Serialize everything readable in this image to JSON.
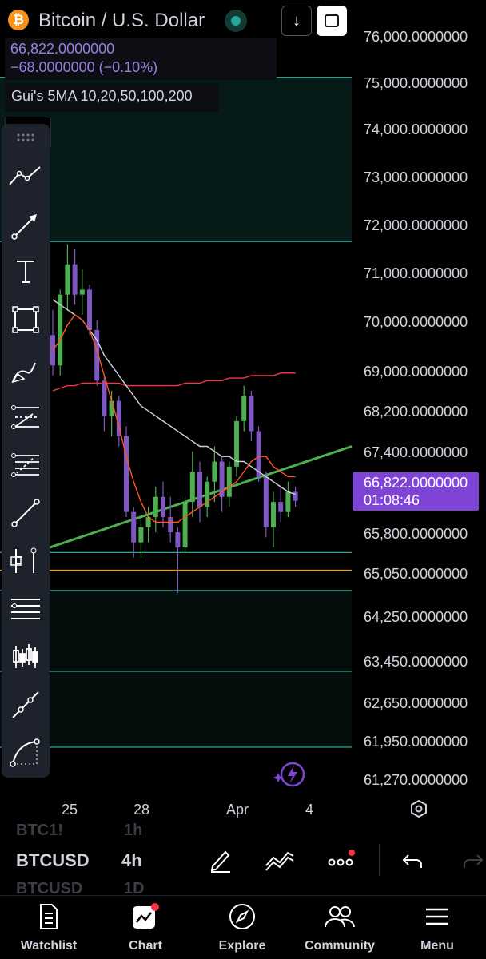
{
  "header": {
    "logo_glyph": "₿",
    "symbol_title": "Bitcoin / U.S. Dollar",
    "price": "66,822.0000000",
    "change": "−68.0000000 (−0.10%)",
    "indicator": "Gui's 5MA 10,20,50,100,200",
    "live_status_color": "#26a69a",
    "down_arrow_glyph": "↓"
  },
  "y_axis": {
    "labels": [
      "76,000.0000000",
      "75,000.0000000",
      "74,000.0000000",
      "73,000.0000000",
      "72,000.0000000",
      "71,000.0000000",
      "70,000.0000000",
      "69,000.0000000",
      "68,200.0000000",
      "67,400.0000000",
      "65,800.0000000",
      "65,050.0000000",
      "64,250.0000000",
      "63,450.0000000",
      "62,650.0000000",
      "61,950.0000000",
      "61,270.0000000"
    ],
    "current_price": "66,822.0000000",
    "countdown": "01:08:46",
    "current_price_color": "#7e44d6"
  },
  "x_axis": {
    "labels": [
      "25",
      "28",
      "Apr",
      "4"
    ]
  },
  "toolbar": {
    "tools": [
      "trend-line",
      "arrow",
      "text",
      "rectangle",
      "brush",
      "pitchfork",
      "fib-retracement",
      "line",
      "measure",
      "horizontal-lines",
      "candles-pattern",
      "path",
      "curve"
    ]
  },
  "symbol_row": {
    "ghost_above_symbol": "BTC1!",
    "ghost_above_tf": "1h",
    "symbol": "BTCUSD",
    "timeframe": "4h",
    "ghost_below_symbol": "BTCUSD",
    "ghost_below_tf": "1D"
  },
  "nav": {
    "items": [
      {
        "label": "Watchlist",
        "icon": "watchlist-icon"
      },
      {
        "label": "Chart",
        "icon": "chart-icon"
      },
      {
        "label": "Explore",
        "icon": "compass-icon"
      },
      {
        "label": "Community",
        "icon": "community-icon"
      },
      {
        "label": "Menu",
        "icon": "menu-icon"
      }
    ],
    "notification_color": "#f23645"
  },
  "chart_data": {
    "type": "candlestick",
    "symbol": "BTCUSD",
    "timeframe": "4h",
    "ylim": [
      61270,
      76000
    ],
    "candle_colors": {
      "up": "#4caf50",
      "down": "#7e57c2"
    },
    "ma_colors": {
      "fast": "#ff5722",
      "mid": "#d1d4dc",
      "slow": "#f23645"
    },
    "horizontal_levels": [
      75200,
      71950,
      65800,
      65450,
      65050,
      63450,
      61950
    ],
    "trendline": {
      "from": 65900,
      "to": 67900
    },
    "candles": [
      {
        "o": 70100,
        "h": 70600,
        "l": 69300,
        "c": 69500
      },
      {
        "o": 69500,
        "h": 71000,
        "l": 69300,
        "c": 70900
      },
      {
        "o": 70900,
        "h": 71900,
        "l": 70600,
        "c": 71500
      },
      {
        "o": 71500,
        "h": 71800,
        "l": 70700,
        "c": 70900
      },
      {
        "o": 70900,
        "h": 71400,
        "l": 70500,
        "c": 71000
      },
      {
        "o": 71000,
        "h": 71100,
        "l": 70100,
        "c": 70200
      },
      {
        "o": 70200,
        "h": 70400,
        "l": 69100,
        "c": 69200
      },
      {
        "o": 69200,
        "h": 69300,
        "l": 68200,
        "c": 68500
      },
      {
        "o": 68500,
        "h": 69000,
        "l": 68100,
        "c": 68800
      },
      {
        "o": 68800,
        "h": 68900,
        "l": 67900,
        "c": 68100
      },
      {
        "o": 68100,
        "h": 68300,
        "l": 66500,
        "c": 66600
      },
      {
        "o": 66600,
        "h": 66700,
        "l": 65700,
        "c": 66000
      },
      {
        "o": 66000,
        "h": 66500,
        "l": 65700,
        "c": 66300
      },
      {
        "o": 66300,
        "h": 66700,
        "l": 66000,
        "c": 66500
      },
      {
        "o": 66500,
        "h": 67100,
        "l": 66200,
        "c": 66900
      },
      {
        "o": 66900,
        "h": 67200,
        "l": 66300,
        "c": 66500
      },
      {
        "o": 66500,
        "h": 66900,
        "l": 66000,
        "c": 66200
      },
      {
        "o": 66200,
        "h": 66300,
        "l": 65000,
        "c": 65900
      },
      {
        "o": 65900,
        "h": 66900,
        "l": 65800,
        "c": 66800
      },
      {
        "o": 66800,
        "h": 67800,
        "l": 66500,
        "c": 67400
      },
      {
        "o": 67400,
        "h": 67600,
        "l": 66400,
        "c": 66700
      },
      {
        "o": 66700,
        "h": 67300,
        "l": 66500,
        "c": 67200
      },
      {
        "o": 67200,
        "h": 67900,
        "l": 66800,
        "c": 67600
      },
      {
        "o": 67600,
        "h": 67700,
        "l": 66600,
        "c": 66900
      },
      {
        "o": 66900,
        "h": 67600,
        "l": 66700,
        "c": 67500
      },
      {
        "o": 67500,
        "h": 68500,
        "l": 67300,
        "c": 68400
      },
      {
        "o": 68400,
        "h": 69100,
        "l": 68200,
        "c": 68900
      },
      {
        "o": 68900,
        "h": 69000,
        "l": 68000,
        "c": 68200
      },
      {
        "o": 68200,
        "h": 68300,
        "l": 67200,
        "c": 67300
      },
      {
        "o": 67300,
        "h": 67400,
        "l": 66100,
        "c": 66300
      },
      {
        "o": 66300,
        "h": 67000,
        "l": 65900,
        "c": 66800
      },
      {
        "o": 66800,
        "h": 67100,
        "l": 66400,
        "c": 66600
      },
      {
        "o": 66600,
        "h": 67200,
        "l": 66500,
        "c": 67000
      },
      {
        "o": 67000,
        "h": 67100,
        "l": 66700,
        "c": 66822
      }
    ],
    "ma_fast": [
      69800,
      70000,
      70300,
      70500,
      70400,
      70200,
      69800,
      69300,
      68800,
      68300,
      67700,
      67200,
      66800,
      66500,
      66400,
      66400,
      66400,
      66400,
      66500,
      66600,
      66700,
      66800,
      66900,
      67000,
      67100,
      67200,
      67400,
      67600,
      67700,
      67700,
      67500,
      67400,
      67300,
      67300
    ],
    "ma_mid": [
      70800,
      70700,
      70600,
      70500,
      70400,
      70200,
      70000,
      69700,
      69500,
      69300,
      69100,
      68900,
      68700,
      68600,
      68500,
      68400,
      68300,
      68200,
      68100,
      68000,
      67900,
      67900,
      67800,
      67700,
      67700,
      67600,
      67600,
      67500,
      67400,
      67300,
      67200,
      67100,
      67000,
      66950
    ],
    "ma_slow": [
      69000,
      69050,
      69100,
      69100,
      69150,
      69150,
      69150,
      69150,
      69150,
      69150,
      69100,
      69100,
      69100,
      69100,
      69100,
      69100,
      69100,
      69100,
      69150,
      69150,
      69150,
      69200,
      69200,
      69200,
      69250,
      69250,
      69250,
      69300,
      69300,
      69300,
      69300,
      69350,
      69350,
      69350
    ]
  }
}
